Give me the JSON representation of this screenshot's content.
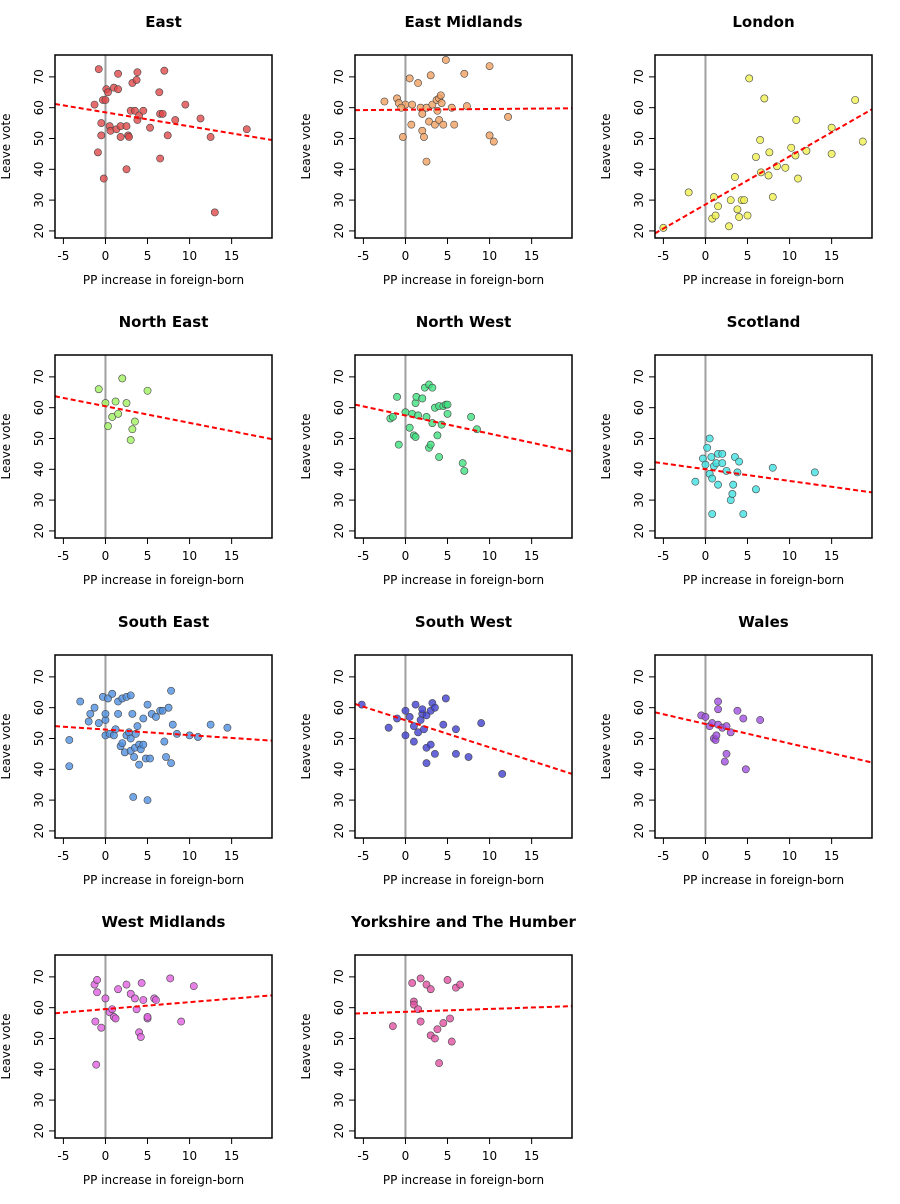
{
  "chart_data": [
    {
      "type": "scatter",
      "title": "East",
      "x_label": "PP increase in foreign-born",
      "y_label": "Leave vote",
      "color": "#e04848",
      "x": [
        -0.8,
        -1.3,
        -0.9,
        -0.5,
        -0.5,
        -0.3,
        0,
        0.1,
        -0.2,
        0.3,
        0.5,
        0.6,
        1,
        1.5,
        1.5,
        1.3,
        1.8,
        1.8,
        2.5,
        2.5,
        2.7,
        2.8,
        3,
        3.2,
        3.5,
        3.7,
        3.8,
        3.8,
        4,
        4.5,
        5.3,
        6.4,
        6.5,
        6.5,
        6.8,
        7,
        7.4,
        8.3,
        9.5,
        11.3,
        12.5,
        13,
        16.8
      ],
      "y": [
        72.5,
        61,
        45.5,
        51,
        55,
        62.5,
        62.5,
        66,
        37,
        65,
        54,
        52.5,
        66.5,
        66,
        71,
        53,
        50.5,
        54,
        54,
        40,
        51,
        50.5,
        59,
        68,
        59,
        69,
        71.5,
        56,
        57.5,
        59,
        53.5,
        65,
        58,
        43.5,
        58,
        72,
        51,
        56,
        61,
        56.5,
        50.5,
        26,
        53
      ],
      "fit": {
        "x": [
          -6,
          19.8
        ],
        "y": [
          61.2,
          49.5
        ]
      },
      "vline": 0,
      "xlim": [
        -6,
        19.8
      ],
      "ylim": [
        17.7,
        77.1
      ],
      "xticks": [
        -5,
        0,
        5,
        10,
        15
      ],
      "yticks": [
        20,
        30,
        40,
        50,
        60,
        70
      ]
    },
    {
      "type": "scatter",
      "title": "East Midlands",
      "x_label": "PP increase in foreign-born",
      "y_label": "Leave vote",
      "color": "#f0a060",
      "x": [
        -2.5,
        -1,
        -0.8,
        0,
        -0.5,
        -0.3,
        0.5,
        0.8,
        0.7,
        1.5,
        1.8,
        2,
        2,
        2.2,
        2.5,
        2.5,
        2.8,
        3,
        3.2,
        3.5,
        3.7,
        3.8,
        4,
        4,
        4.2,
        4.3,
        4.5,
        4.8,
        5.5,
        5.8,
        7,
        7.3,
        10,
        10,
        10.5,
        12.2
      ],
      "y": [
        62,
        63,
        61.5,
        61,
        60,
        50.5,
        69.5,
        61,
        54.5,
        68,
        60,
        58,
        52.5,
        50.5,
        42.5,
        60,
        55.5,
        70.5,
        61,
        54.5,
        62.5,
        59,
        63,
        56,
        64,
        61.5,
        54.5,
        75.5,
        60,
        54.5,
        71,
        60.5,
        73.5,
        51,
        49,
        57
      ],
      "fit": {
        "x": [
          -6,
          19.8
        ],
        "y": [
          59.2,
          59.8
        ]
      },
      "vline": 0,
      "xlim": [
        -6,
        19.8
      ],
      "ylim": [
        17.7,
        77.1
      ],
      "xticks": [
        -5,
        0,
        5,
        10,
        15
      ],
      "yticks": [
        20,
        30,
        40,
        50,
        60,
        70
      ]
    },
    {
      "type": "scatter",
      "title": "London",
      "x_label": "PP increase in foreign-born",
      "y_label": "Leave vote",
      "color": "#f0f050",
      "x": [
        -5,
        -2,
        0.8,
        1,
        1.2,
        1.5,
        2.8,
        3,
        3.5,
        3.8,
        4,
        4.3,
        4.6,
        5,
        5.2,
        6,
        6.5,
        6.6,
        7,
        7.5,
        7.6,
        8,
        8.5,
        9.5,
        10.2,
        10.8,
        10.7,
        11,
        12,
        15,
        15,
        17.8,
        18.7
      ],
      "y": [
        21,
        32.5,
        24,
        31,
        25,
        28,
        21.5,
        30,
        37.5,
        27,
        24.5,
        30,
        30,
        25,
        69.5,
        44,
        49.5,
        39,
        63,
        38,
        45.5,
        31,
        41,
        40.5,
        47,
        56,
        44.5,
        37,
        46,
        53.5,
        45,
        62.5,
        49
      ],
      "fit": {
        "x": [
          -6,
          19.8
        ],
        "y": [
          19.2,
          59.5
        ]
      },
      "vline": 0,
      "xlim": [
        -6,
        19.8
      ],
      "ylim": [
        17.7,
        77.1
      ],
      "xticks": [
        -5,
        0,
        5,
        10,
        15
      ],
      "yticks": [
        20,
        30,
        40,
        50,
        60,
        70
      ]
    },
    {
      "type": "scatter",
      "title": "North East",
      "x_label": "PP increase in foreign-born",
      "y_label": "Leave vote",
      "color": "#a0f060",
      "x": [
        -0.8,
        0,
        0.3,
        0.8,
        1.2,
        1.5,
        2,
        2.5,
        3,
        3.2,
        3.5,
        5
      ],
      "y": [
        66,
        61.5,
        54,
        57,
        62,
        58,
        69.5,
        61.5,
        49.5,
        53,
        55.5,
        65.5
      ],
      "fit": {
        "x": [
          -6,
          19.8
        ],
        "y": [
          63.7,
          49.8
        ]
      },
      "vline": 0,
      "xlim": [
        -6,
        19.8
      ],
      "ylim": [
        17.7,
        77.1
      ],
      "xticks": [
        -5,
        0,
        5,
        10,
        15
      ],
      "yticks": [
        20,
        30,
        40,
        50,
        60,
        70
      ]
    },
    {
      "type": "scatter",
      "title": "North West",
      "x_label": "PP increase in foreign-born",
      "y_label": "Leave vote",
      "color": "#40e080",
      "x": [
        -1.8,
        -1.5,
        -1,
        -0.8,
        0,
        0.5,
        0.8,
        1,
        1.2,
        1.2,
        1.3,
        1.5,
        2,
        2.3,
        2.5,
        2.8,
        2.8,
        3,
        3.2,
        3.2,
        3.5,
        3.8,
        4,
        4,
        4.3,
        4.5,
        4.8,
        5,
        5,
        6.8,
        7,
        7.8,
        8.5
      ],
      "y": [
        56.5,
        57,
        63.5,
        48,
        58.5,
        53.5,
        58,
        51,
        50.5,
        61.5,
        63.5,
        57.5,
        63,
        66.5,
        57,
        67.5,
        47,
        48,
        66.5,
        55,
        60,
        51,
        60.5,
        44,
        54.5,
        60.5,
        61,
        61,
        58,
        42,
        39.5,
        57,
        53
      ],
      "fit": {
        "x": [
          -6,
          19.8
        ],
        "y": [
          61,
          45.8
        ]
      },
      "vline": 0,
      "xlim": [
        -6,
        19.8
      ],
      "ylim": [
        17.7,
        77.1
      ],
      "xticks": [
        -5,
        0,
        5,
        10,
        15
      ],
      "yticks": [
        20,
        30,
        40,
        50,
        60,
        70
      ]
    },
    {
      "type": "scatter",
      "title": "Scotland",
      "x_label": "PP increase in foreign-born",
      "y_label": "Leave vote",
      "color": "#40e0e0",
      "x": [
        -1.2,
        -0.3,
        0,
        0.2,
        0.5,
        0.5,
        0.7,
        0.8,
        0.8,
        1,
        1.3,
        1.5,
        1.5,
        2,
        2,
        2.5,
        3,
        3.2,
        3.3,
        3.5,
        3.8,
        4,
        4.5,
        6,
        8,
        13
      ],
      "y": [
        36,
        43.5,
        41.5,
        47,
        38.5,
        50,
        44,
        37,
        25.5,
        41,
        42,
        35,
        45,
        45,
        42,
        39.5,
        30,
        32,
        35,
        44,
        39,
        42.5,
        25.5,
        33.5,
        40.5,
        39
      ],
      "fit": {
        "x": [
          -6,
          19.8
        ],
        "y": [
          42.3,
          32.5
        ]
      },
      "vline": 0,
      "xlim": [
        -6,
        19.8
      ],
      "ylim": [
        17.7,
        77.1
      ],
      "xticks": [
        -5,
        0,
        5,
        10,
        15
      ],
      "yticks": [
        20,
        30,
        40,
        50,
        60,
        70
      ]
    },
    {
      "type": "scatter",
      "title": "South East",
      "x_label": "PP increase in foreign-born",
      "y_label": "Leave vote",
      "color": "#5090e0",
      "x": [
        -4.3,
        -4.3,
        -3,
        -2,
        -1.8,
        -1.3,
        -0.8,
        -0.3,
        0,
        0,
        0,
        0.3,
        0.5,
        0.8,
        1,
        1.2,
        1.5,
        1.5,
        1.8,
        2,
        2,
        2.3,
        2.5,
        2.5,
        2.8,
        3,
        3,
        3,
        3.2,
        3.3,
        3.4,
        3.5,
        3.6,
        3.8,
        4,
        4,
        4.2,
        4.5,
        4.5,
        4.8,
        5,
        5,
        5.3,
        5.5,
        6,
        6.5,
        6.8,
        7,
        7.2,
        7.5,
        7.8,
        7.8,
        8,
        8.5,
        10,
        11,
        12.5,
        14.5
      ],
      "y": [
        49.5,
        41,
        62,
        55.5,
        58,
        60,
        55,
        63.5,
        51,
        56,
        58,
        63,
        51.5,
        64.5,
        51,
        53,
        62,
        58,
        47.5,
        48.5,
        63,
        45.5,
        63.5,
        51,
        52,
        50,
        46,
        64,
        58,
        31,
        44,
        47,
        51.5,
        54,
        48,
        41.5,
        46.5,
        56.5,
        48,
        43.5,
        30,
        61,
        43.5,
        58,
        57,
        59,
        59,
        49,
        44,
        60,
        65.5,
        42,
        54.5,
        51.5,
        51,
        50.5,
        54.5,
        53.5
      ],
      "fit": {
        "x": [
          -6,
          19.8
        ],
        "y": [
          54,
          49.3
        ]
      },
      "vline": 0,
      "xlim": [
        -6,
        19.8
      ],
      "ylim": [
        17.7,
        77.1
      ],
      "xticks": [
        -5,
        0,
        5,
        10,
        15
      ],
      "yticks": [
        20,
        30,
        40,
        50,
        60,
        70
      ]
    },
    {
      "type": "scatter",
      "title": "South West",
      "x_label": "PP increase in foreign-born",
      "y_label": "Leave vote",
      "color": "#4040d0",
      "x": [
        -5.2,
        -2,
        -1,
        0,
        0,
        0.5,
        1,
        1,
        1.2,
        1.5,
        1.8,
        2,
        2,
        2.2,
        2.5,
        2.5,
        2.5,
        3,
        3,
        3.2,
        3.5,
        3.5,
        4.5,
        4.8,
        6,
        6,
        7.5,
        9,
        11.5
      ],
      "y": [
        61,
        53.5,
        56.5,
        51,
        59,
        57,
        54,
        49,
        61,
        52,
        56,
        58,
        59.5,
        53,
        57.5,
        42,
        47,
        59,
        48,
        61.5,
        45,
        60,
        54.5,
        63,
        53,
        45,
        44,
        55,
        38.5
      ],
      "fit": {
        "x": [
          -6,
          19.8
        ],
        "y": [
          61.2,
          38.5
        ]
      },
      "vline": 0,
      "xlim": [
        -6,
        19.8
      ],
      "ylim": [
        17.7,
        77.1
      ],
      "xticks": [
        -5,
        0,
        5,
        10,
        15
      ],
      "yticks": [
        20,
        30,
        40,
        50,
        60,
        70
      ]
    },
    {
      "type": "scatter",
      "title": "Wales",
      "x_label": "PP increase in foreign-born",
      "y_label": "Leave vote",
      "color": "#a050e0",
      "x": [
        -0.5,
        0,
        0.5,
        0.8,
        1,
        1.2,
        1.3,
        1.5,
        1.5,
        1.5,
        2,
        2.3,
        2.5,
        2.5,
        3,
        3.8,
        4.5,
        4.8,
        6.5
      ],
      "y": [
        57.5,
        57,
        54,
        55,
        50,
        49.5,
        51,
        62,
        59.5,
        54.5,
        53.5,
        42.5,
        54,
        45,
        52,
        59,
        56.5,
        40,
        56
      ],
      "fit": {
        "x": [
          -6,
          19.8
        ],
        "y": [
          58.5,
          42.2
        ]
      },
      "vline": 0,
      "xlim": [
        -6,
        19.8
      ],
      "ylim": [
        17.7,
        77.1
      ],
      "xticks": [
        -5,
        0,
        5,
        10,
        15
      ],
      "yticks": [
        20,
        30,
        40,
        50,
        60,
        70
      ]
    },
    {
      "type": "scatter",
      "title": "West Midlands",
      "x_label": "PP increase in foreign-born",
      "y_label": "Leave vote",
      "color": "#e060e0",
      "x": [
        -1.3,
        -1,
        -1,
        -1.2,
        -1.1,
        -0.5,
        0,
        0.5,
        0.8,
        1,
        1.2,
        1.5,
        2.5,
        3,
        3.5,
        3.7,
        4,
        4.2,
        4.3,
        4.5,
        5,
        5,
        5.8,
        6,
        7.7,
        9,
        10.5
      ],
      "y": [
        67.5,
        69,
        65,
        55.5,
        41.5,
        53.5,
        63,
        58.5,
        59.5,
        57,
        56.5,
        66,
        67.5,
        64.5,
        63,
        59.5,
        52,
        50.5,
        68,
        62.5,
        56.5,
        57,
        63,
        62.5,
        69.5,
        55.5,
        67
      ],
      "fit": {
        "x": [
          -6,
          19.8
        ],
        "y": [
          58.2,
          64
        ]
      },
      "vline": 0,
      "xlim": [
        -6,
        19.8
      ],
      "ylim": [
        17.7,
        77.1
      ],
      "xticks": [
        -5,
        0,
        5,
        10,
        15
      ],
      "yticks": [
        20,
        30,
        40,
        50,
        60,
        70
      ]
    },
    {
      "type": "scatter",
      "title": "Yorkshire and The Humber",
      "x_label": "PP increase in foreign-born",
      "y_label": "Leave vote",
      "color": "#e050a0",
      "x": [
        -1.5,
        0.8,
        1,
        1,
        1.5,
        1.8,
        1.8,
        2.5,
        3,
        3,
        3.5,
        3.8,
        4,
        4.5,
        5,
        5.3,
        5.5,
        6,
        6.5
      ],
      "y": [
        54,
        68,
        62,
        61,
        59.5,
        69.5,
        55.5,
        67.5,
        66,
        51,
        50,
        53,
        42,
        55,
        69,
        56.5,
        49,
        66.5,
        67.5
      ],
      "fit": {
        "x": [
          -6,
          19.8
        ],
        "y": [
          58.1,
          60.5
        ]
      },
      "vline": 0,
      "xlim": [
        -6,
        19.8
      ],
      "ylim": [
        17.7,
        77.1
      ],
      "xticks": [
        -5,
        0,
        5,
        10,
        15
      ],
      "yticks": [
        20,
        30,
        40,
        50,
        60,
        70
      ]
    }
  ]
}
